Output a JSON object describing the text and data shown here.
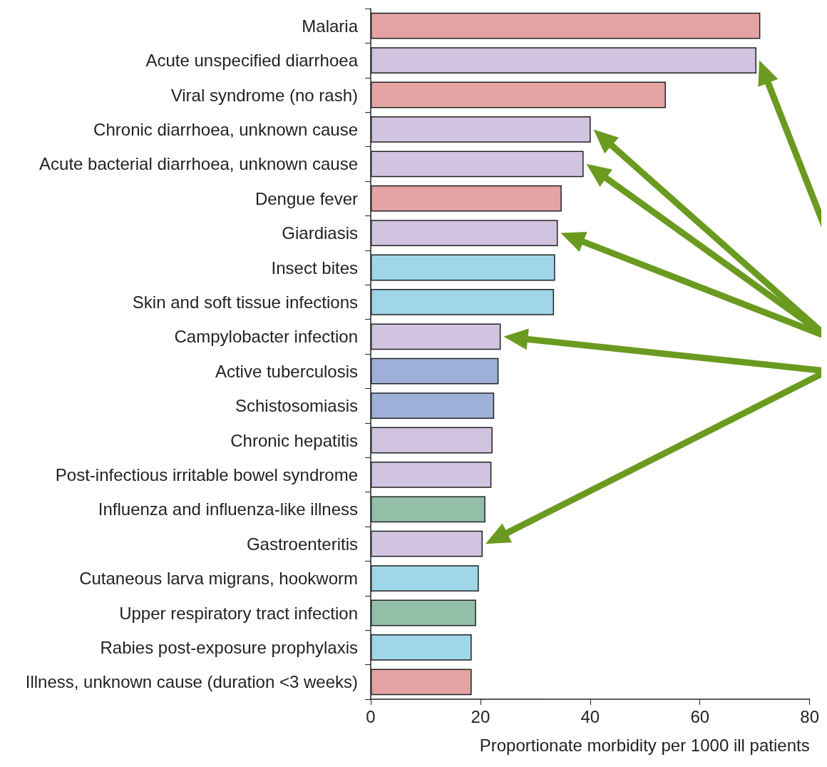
{
  "chart_data": {
    "type": "bar",
    "orientation": "horizontal",
    "xlabel": "Proportionate morbidity per 1000 ill patients",
    "categories": [
      "Malaria",
      "Acute unspecified diarrhoea",
      "Viral syndrome (no rash)",
      "Chronic diarrhoea, unknown cause",
      "Acute bacterial diarrhoea, unknown cause",
      "Dengue fever",
      "Giardiasis",
      "Insect bites",
      "Skin and soft tissue infections",
      "Campylobacter infection",
      "Active tuberculosis",
      "Schistosomiasis",
      "Chronic hepatitis",
      "Post-infectious irritable bowel syndrome",
      "Influenza and influenza-like illness",
      "Gastroenteritis",
      "Cutaneous larva migrans, hookworm",
      "Upper respiratory tract infection",
      "Rabies post-exposure prophylaxis",
      "Illness, unknown cause (duration <3 weeks)"
    ],
    "values": [
      71.0,
      70.3,
      53.8,
      40.1,
      38.8,
      34.8,
      34.1,
      33.6,
      33.4,
      23.7,
      23.3,
      22.5,
      22.2,
      22.0,
      20.9,
      20.4,
      19.7,
      19.2,
      18.4,
      18.4
    ],
    "colors": [
      "#e3a3a3",
      "#d0c4e0",
      "#e3a3a3",
      "#d0c4e0",
      "#d0c4e0",
      "#e3a3a3",
      "#d0c4e0",
      "#9fd6e8",
      "#9fd6e8",
      "#d0c4e0",
      "#9fb0d8",
      "#9fb0d8",
      "#d0c4e0",
      "#d0c4e0",
      "#93bfa8",
      "#d0c4e0",
      "#9fd6e8",
      "#93bfa8",
      "#9fd6e8",
      "#e3a3a3"
    ],
    "xlim": [
      0,
      80
    ],
    "xticks": [
      0,
      20,
      40,
      60,
      80
    ],
    "grid": false
  }
}
